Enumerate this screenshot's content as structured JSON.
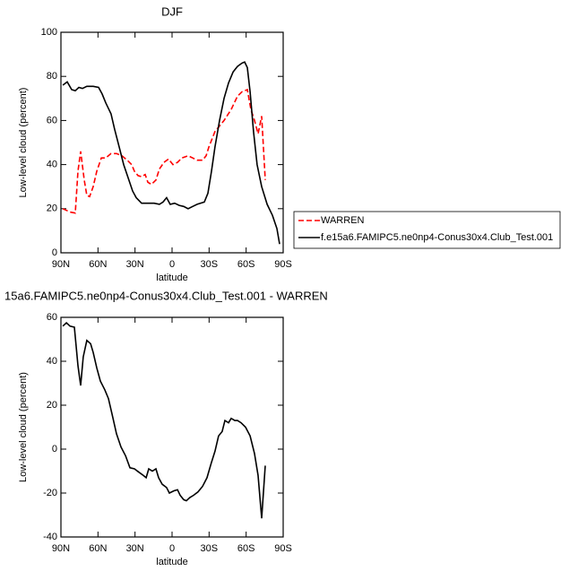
{
  "chart_data": [
    {
      "type": "line",
      "title": "DJF",
      "xlabel": "latitude",
      "ylabel": "Low-level cloud (percent)",
      "xlim": [
        90,
        -90
      ],
      "ylim": [
        0,
        100
      ],
      "xticks": [
        {
          "value": 90,
          "label": "90N"
        },
        {
          "value": 60,
          "label": "60N"
        },
        {
          "value": 30,
          "label": "30N"
        },
        0,
        {
          "value": -30,
          "label": "30S"
        },
        {
          "value": -60,
          "label": "60S"
        },
        {
          "value": -90,
          "label": "90S"
        }
      ],
      "yticks": [
        0,
        20,
        40,
        60,
        80,
        100
      ],
      "legend": "outside right",
      "series": [
        {
          "name": "WARREN",
          "color": "#ff0000",
          "dash": true,
          "x": [
            88.5,
            82.7,
            78.4,
            76.2,
            74.0,
            71.1,
            69.0,
            66.8,
            63.9,
            61.0,
            57.3,
            53.7,
            49.4,
            45.0,
            40.6,
            36.3,
            32.7,
            30.5,
            27.6,
            24.7,
            21.8,
            19.6,
            16.7,
            13.1,
            10.2,
            6.5,
            2.9,
            -0.7,
            -4.4,
            -8.0,
            -13.0,
            -16.7,
            -20.3,
            -24.7,
            -27.6,
            -29.8,
            -34.8,
            -42.1,
            -47.9,
            -53.0,
            -56.6,
            -61.0,
            -63.9,
            -66.8,
            -69.7,
            -72.6,
            -75.5
          ],
          "values": [
            20,
            18.5,
            18,
            37,
            46,
            33,
            26,
            25.5,
            30,
            37,
            43,
            43,
            45,
            45,
            44,
            42,
            40,
            37,
            35,
            34.5,
            35.5,
            32,
            31,
            33,
            38,
            41,
            42.5,
            40,
            41,
            43,
            44,
            43,
            42,
            42,
            44,
            48,
            55,
            60,
            65,
            71,
            73,
            74,
            65,
            60,
            54,
            62,
            33
          ]
        },
        {
          "name": "f.e15a6.FAMIPC5.ne0np4-Conus30x4.Club_Test.001",
          "color": "#000000",
          "dash": false,
          "x": [
            88.5,
            84.9,
            81.3,
            78.4,
            75.5,
            72.6,
            69.0,
            63.9,
            59.5,
            56.6,
            53.7,
            49.4,
            46.5,
            42.8,
            39.2,
            35.6,
            31.9,
            29.0,
            24.7,
            19.6,
            14.5,
            10.2,
            7.3,
            4.4,
            1.5,
            -2.1,
            -5.8,
            -9.4,
            -13.0,
            -16.7,
            -20.3,
            -26.1,
            -29.0,
            -31.9,
            -34.8,
            -38.5,
            -42.1,
            -45.7,
            -49.4,
            -53.0,
            -56.6,
            -58.8,
            -61.0,
            -63.2,
            -66.0,
            -68.9,
            -72.6,
            -77.0,
            -81.3,
            -84.9,
            -87.1
          ],
          "values": [
            76,
            77.5,
            74,
            73.5,
            75,
            74.5,
            75.5,
            75.5,
            75,
            72,
            68,
            63,
            56,
            48,
            40,
            34,
            28,
            25,
            22.5,
            22.5,
            22.5,
            22,
            23,
            25,
            22,
            22.5,
            21.5,
            21,
            20,
            21,
            22,
            23,
            27,
            37,
            48,
            60,
            70,
            77,
            82,
            84.5,
            86,
            86.5,
            84,
            73,
            55,
            40,
            30,
            22,
            17,
            11,
            4
          ]
        }
      ]
    },
    {
      "type": "line",
      "title": "15a6.FAMIPC5.ne0np4-Conus30x4.Club_Test.001 - WARREN",
      "xlabel": "latitude",
      "ylabel": "Low-level cloud (percent)",
      "xlim": [
        90,
        -90
      ],
      "ylim": [
        -40,
        60
      ],
      "xticks": [
        {
          "value": 90,
          "label": "90N"
        },
        {
          "value": 60,
          "label": "60N"
        },
        {
          "value": 30,
          "label": "30N"
        },
        0,
        {
          "value": -30,
          "label": "30S"
        },
        {
          "value": -60,
          "label": "60S"
        },
        {
          "value": -90,
          "label": "90S"
        }
      ],
      "yticks": [
        -40,
        -20,
        0,
        20,
        40,
        60
      ],
      "series": [
        {
          "color": "#000000",
          "dash": false,
          "x": [
            88.5,
            85.6,
            82.7,
            79.1,
            76.2,
            74.0,
            71.9,
            69.0,
            66.0,
            63.9,
            61.0,
            58.1,
            54.4,
            51.5,
            48.6,
            45.0,
            41.4,
            37.7,
            34.1,
            30.5,
            26.9,
            23.2,
            21.0,
            18.9,
            16.0,
            13.1,
            10.9,
            8.0,
            4.4,
            2.2,
            -1.5,
            -4.4,
            -6.5,
            -9.4,
            -11.6,
            -14.5,
            -17.4,
            -21.0,
            -24.7,
            -28.3,
            -31.9,
            -34.8,
            -37.7,
            -40.6,
            -42.8,
            -45.7,
            -47.9,
            -50.8,
            -53.0,
            -55.9,
            -59.5,
            -63.2,
            -66.8,
            -69.7,
            -72.6,
            -75.5
          ],
          "values": [
            56,
            57.5,
            56,
            55.5,
            38,
            29,
            42,
            49.5,
            48,
            44,
            37,
            31,
            27,
            23,
            16,
            7,
            1,
            -3,
            -8.5,
            -9,
            -10.5,
            -12,
            -13,
            -9,
            -10,
            -9,
            -13,
            -16,
            -17.5,
            -20,
            -19,
            -18.5,
            -21,
            -23,
            -23.5,
            -22,
            -21,
            -19.5,
            -17,
            -13,
            -6,
            -1,
            6,
            8,
            13,
            12,
            14,
            13,
            13,
            12,
            10,
            6,
            -2,
            -12,
            -31.5,
            -7.5
          ]
        }
      ]
    }
  ]
}
